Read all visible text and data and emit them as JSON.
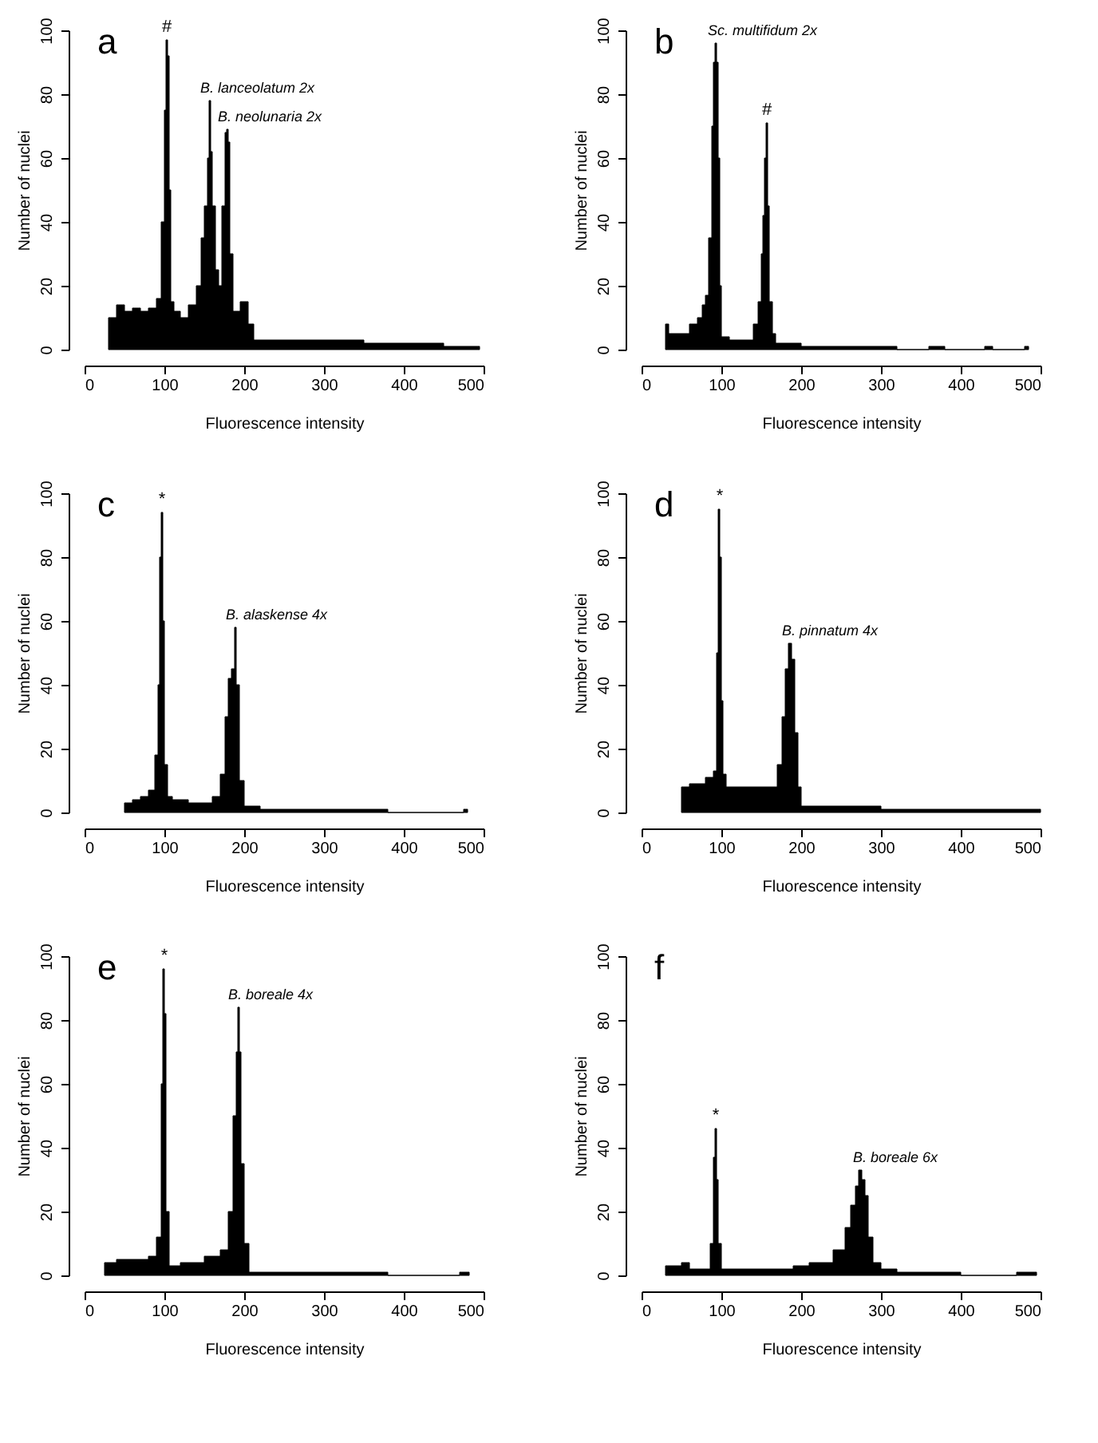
{
  "chart_data": [
    {
      "type": "histogram",
      "title": "a",
      "xlabel": "Fluorescence intensity",
      "ylabel": "Number of nuclei",
      "xlim": [
        0,
        500
      ],
      "xticks": [
        0,
        100,
        200,
        300,
        400,
        500
      ],
      "ylim": [
        0,
        100
      ],
      "yticks": [
        0,
        20,
        40,
        60,
        80,
        100
      ],
      "color": "#000000",
      "bins": [
        30,
        40,
        50,
        60,
        70,
        80,
        90,
        96,
        100,
        102,
        104,
        106,
        108,
        112,
        120,
        130,
        140,
        146,
        150,
        154,
        156,
        158,
        160,
        164,
        168,
        172,
        176,
        178,
        180,
        182,
        186,
        195,
        205,
        212,
        220,
        260,
        300,
        350,
        400,
        450,
        495
      ],
      "values": [
        10,
        14,
        12,
        13,
        12,
        13,
        16,
        40,
        75,
        97,
        92,
        50,
        15,
        12,
        10,
        14,
        20,
        35,
        45,
        60,
        78,
        62,
        45,
        25,
        20,
        45,
        68,
        69,
        65,
        30,
        12,
        15,
        8,
        3,
        3,
        3,
        3,
        2,
        2,
        1
      ],
      "annotations": [
        {
          "text": "#",
          "x": 103,
          "y": 97
        },
        {
          "text": "B. lanceolatum 2x",
          "x": 157,
          "y": 78
        },
        {
          "text": "B. neolunaria 2x",
          "x": 179,
          "y": 69
        }
      ]
    },
    {
      "type": "histogram",
      "title": "b",
      "xlabel": "Fluorescence intensity",
      "ylabel": "Number of nuclei",
      "xlim": [
        0,
        500
      ],
      "xticks": [
        0,
        100,
        200,
        300,
        400,
        500
      ],
      "ylim": [
        0,
        100
      ],
      "yticks": [
        0,
        20,
        40,
        60,
        80,
        100
      ],
      "color": "#000000",
      "bins": [
        30,
        34,
        50,
        60,
        70,
        76,
        80,
        84,
        88,
        90,
        92,
        94,
        96,
        98,
        100,
        110,
        140,
        146,
        150,
        152,
        154,
        156,
        158,
        160,
        164,
        168,
        200,
        250,
        320,
        360,
        380,
        430,
        440,
        480,
        485
      ],
      "values": [
        8,
        5,
        5,
        8,
        10,
        14,
        17,
        35,
        70,
        90,
        96,
        90,
        60,
        20,
        4,
        3,
        8,
        15,
        30,
        42,
        60,
        71,
        45,
        15,
        5,
        2,
        1,
        1,
        0,
        1,
        0,
        1,
        0,
        1
      ],
      "annotations": [
        {
          "text": "Sc. multifidum 2x",
          "x": 95,
          "y": 96
        },
        {
          "text": "#",
          "x": 157,
          "y": 71
        }
      ]
    },
    {
      "type": "histogram",
      "title": "c",
      "xlabel": "Fluorescence intensity",
      "ylabel": "Number of nuclei",
      "xlim": [
        0,
        500
      ],
      "xticks": [
        0,
        100,
        200,
        300,
        400,
        500
      ],
      "ylim": [
        0,
        100
      ],
      "yticks": [
        0,
        20,
        40,
        60,
        80,
        100
      ],
      "color": "#000000",
      "bins": [
        50,
        60,
        70,
        80,
        88,
        92,
        94,
        96,
        98,
        100,
        104,
        110,
        130,
        160,
        170,
        176,
        180,
        184,
        188,
        190,
        194,
        200,
        220,
        300,
        380,
        475,
        480
      ],
      "values": [
        3,
        4,
        5,
        7,
        18,
        40,
        80,
        94,
        60,
        15,
        5,
        4,
        3,
        5,
        12,
        30,
        42,
        45,
        58,
        40,
        10,
        2,
        1,
        1,
        0,
        1
      ],
      "annotations": [
        {
          "text": "*",
          "x": 97,
          "y": 94
        },
        {
          "text": "B. alaskense 4x",
          "x": 189,
          "y": 58
        }
      ]
    },
    {
      "type": "histogram",
      "title": "d",
      "xlabel": "Fluorescence intensity",
      "ylabel": "Number of nuclei",
      "xlim": [
        0,
        500
      ],
      "xticks": [
        0,
        100,
        200,
        300,
        400,
        500
      ],
      "ylim": [
        0,
        100
      ],
      "yticks": [
        0,
        20,
        40,
        60,
        80,
        100
      ],
      "color": "#000000",
      "bins": [
        50,
        60,
        80,
        90,
        94,
        96,
        98,
        100,
        102,
        106,
        130,
        150,
        170,
        176,
        180,
        184,
        188,
        192,
        196,
        200,
        230,
        300,
        400,
        500
      ],
      "values": [
        8,
        9,
        11,
        13,
        50,
        95,
        80,
        35,
        12,
        8,
        8,
        8,
        15,
        30,
        45,
        53,
        48,
        25,
        8,
        2,
        2,
        1,
        1
      ],
      "annotations": [
        {
          "text": "*",
          "x": 98,
          "y": 95
        },
        {
          "text": "B. pinnatum 4x",
          "x": 188,
          "y": 53
        }
      ]
    },
    {
      "type": "histogram",
      "title": "e",
      "xlabel": "Fluorescence intensity",
      "ylabel": "Number of nuclei",
      "xlim": [
        0,
        500
      ],
      "xticks": [
        0,
        100,
        200,
        300,
        400,
        500
      ],
      "ylim": [
        0,
        100
      ],
      "yticks": [
        0,
        20,
        40,
        60,
        80,
        100
      ],
      "color": "#000000",
      "bins": [
        25,
        40,
        60,
        80,
        90,
        96,
        98,
        100,
        102,
        106,
        120,
        150,
        170,
        180,
        186,
        190,
        192,
        194,
        196,
        200,
        206,
        300,
        380,
        470,
        482
      ],
      "values": [
        4,
        5,
        5,
        6,
        12,
        60,
        96,
        82,
        20,
        3,
        4,
        6,
        8,
        20,
        50,
        70,
        84,
        70,
        35,
        10,
        1,
        1,
        0,
        1
      ],
      "annotations": [
        {
          "text": "*",
          "x": 100,
          "y": 96
        },
        {
          "text": "B. boreale 4x",
          "x": 192,
          "y": 84
        }
      ]
    },
    {
      "type": "histogram",
      "title": "f",
      "xlabel": "Fluorescence intensity",
      "ylabel": "Number of nuclei",
      "xlim": [
        0,
        500
      ],
      "xticks": [
        0,
        100,
        200,
        300,
        400,
        500
      ],
      "ylim": [
        0,
        100
      ],
      "yticks": [
        0,
        20,
        40,
        60,
        80,
        100
      ],
      "color": "#000000",
      "bins": [
        30,
        50,
        60,
        86,
        90,
        92,
        94,
        96,
        100,
        130,
        160,
        190,
        210,
        240,
        255,
        262,
        268,
        272,
        276,
        280,
        284,
        290,
        300,
        320,
        400,
        470,
        495
      ],
      "values": [
        3,
        4,
        2,
        10,
        37,
        46,
        30,
        10,
        2,
        2,
        2,
        3,
        4,
        8,
        15,
        22,
        28,
        33,
        30,
        25,
        12,
        4,
        2,
        1,
        0,
        1
      ],
      "annotations": [
        {
          "text": "*",
          "x": 93,
          "y": 46
        },
        {
          "text": "B. boreale 6x",
          "x": 277,
          "y": 33
        }
      ]
    }
  ]
}
